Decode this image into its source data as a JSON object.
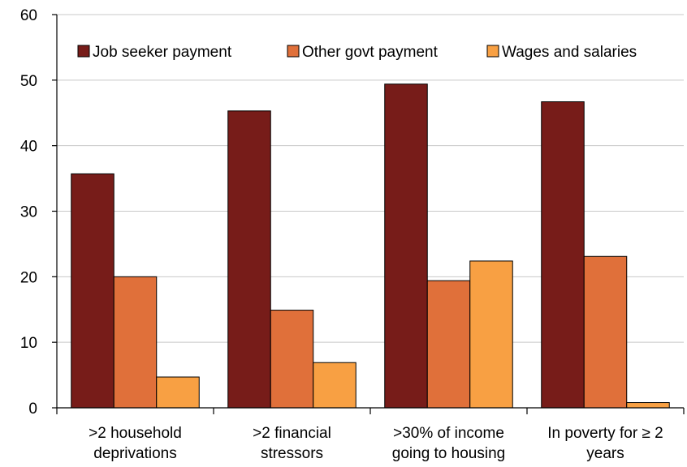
{
  "chart_data": {
    "type": "bar",
    "categories": [
      [
        ">2 household",
        "deprivations"
      ],
      [
        ">2 financial",
        "stressors"
      ],
      [
        ">30% of income",
        "going to housing"
      ],
      [
        "In poverty for ≥ 2",
        "years"
      ]
    ],
    "series": [
      {
        "name": "Job seeker payment",
        "color": "#771c19",
        "values": [
          35.7,
          45.3,
          49.4,
          46.7
        ]
      },
      {
        "name": "Other govt payment",
        "color": "#e0703a",
        "values": [
          20.0,
          14.9,
          19.4,
          23.1
        ]
      },
      {
        "name": "Wages and salaries",
        "color": "#f8a043",
        "values": [
          4.7,
          6.9,
          22.4,
          0.8
        ]
      }
    ],
    "ylim": [
      0,
      60
    ],
    "yticks": [
      0,
      10,
      20,
      30,
      40,
      50,
      60
    ],
    "grid": true,
    "legend": "top"
  }
}
